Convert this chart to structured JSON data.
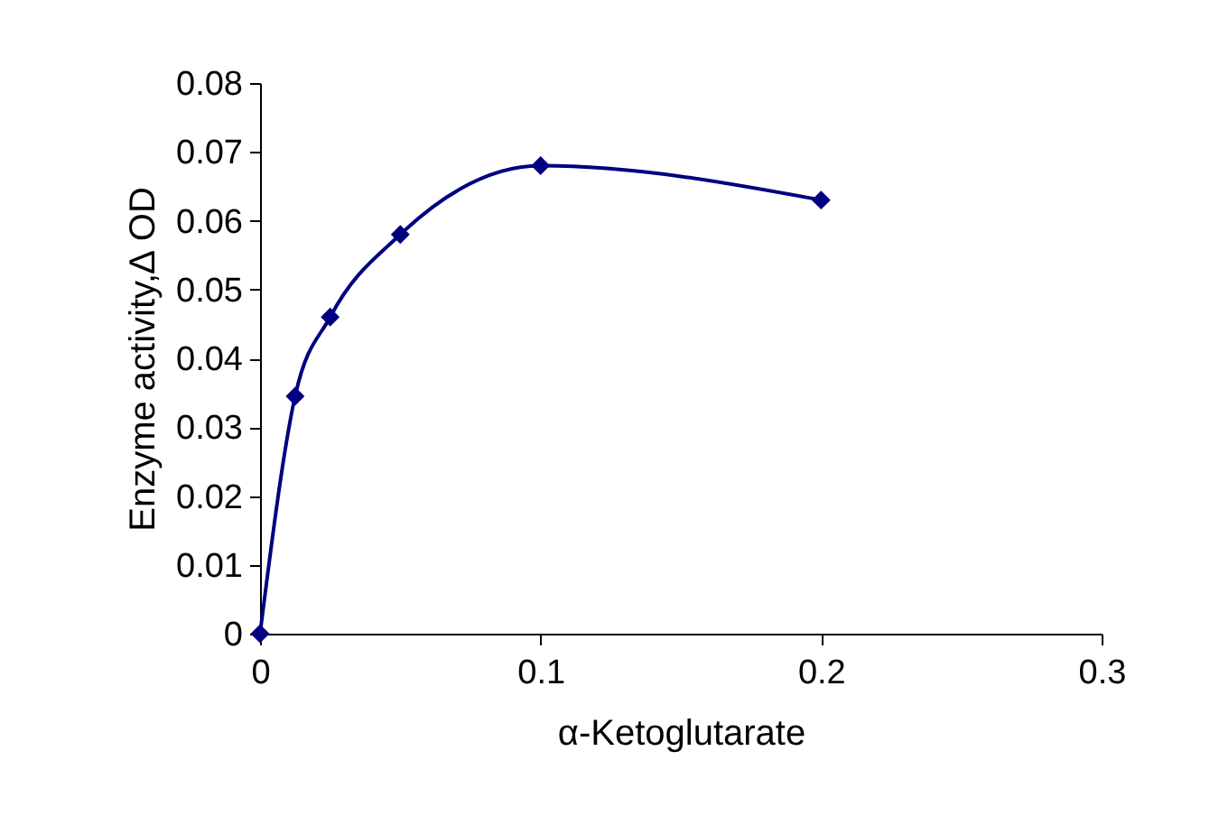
{
  "chart_data": {
    "type": "line",
    "xlabel": "α-Ketoglutarate",
    "ylabel": "Enzyme activity,∆ OD",
    "x": [
      0,
      0.0125,
      0.025,
      0.05,
      0.1,
      0.2
    ],
    "series": [
      {
        "color": "#000080",
        "values": [
          0,
          0.0345,
          0.046,
          0.058,
          0.068,
          0.063
        ]
      }
    ],
    "xlim": [
      0,
      0.3
    ],
    "xticks": [
      0,
      0.1,
      0.2,
      0.3
    ],
    "ylim": [
      0,
      0.08
    ],
    "yticks": [
      0,
      0.01,
      0.02,
      0.03,
      0.04,
      0.05,
      0.06,
      0.07,
      0.08
    ],
    "grid": false,
    "legend": false,
    "marker": "diamond",
    "line_style": "solid"
  }
}
